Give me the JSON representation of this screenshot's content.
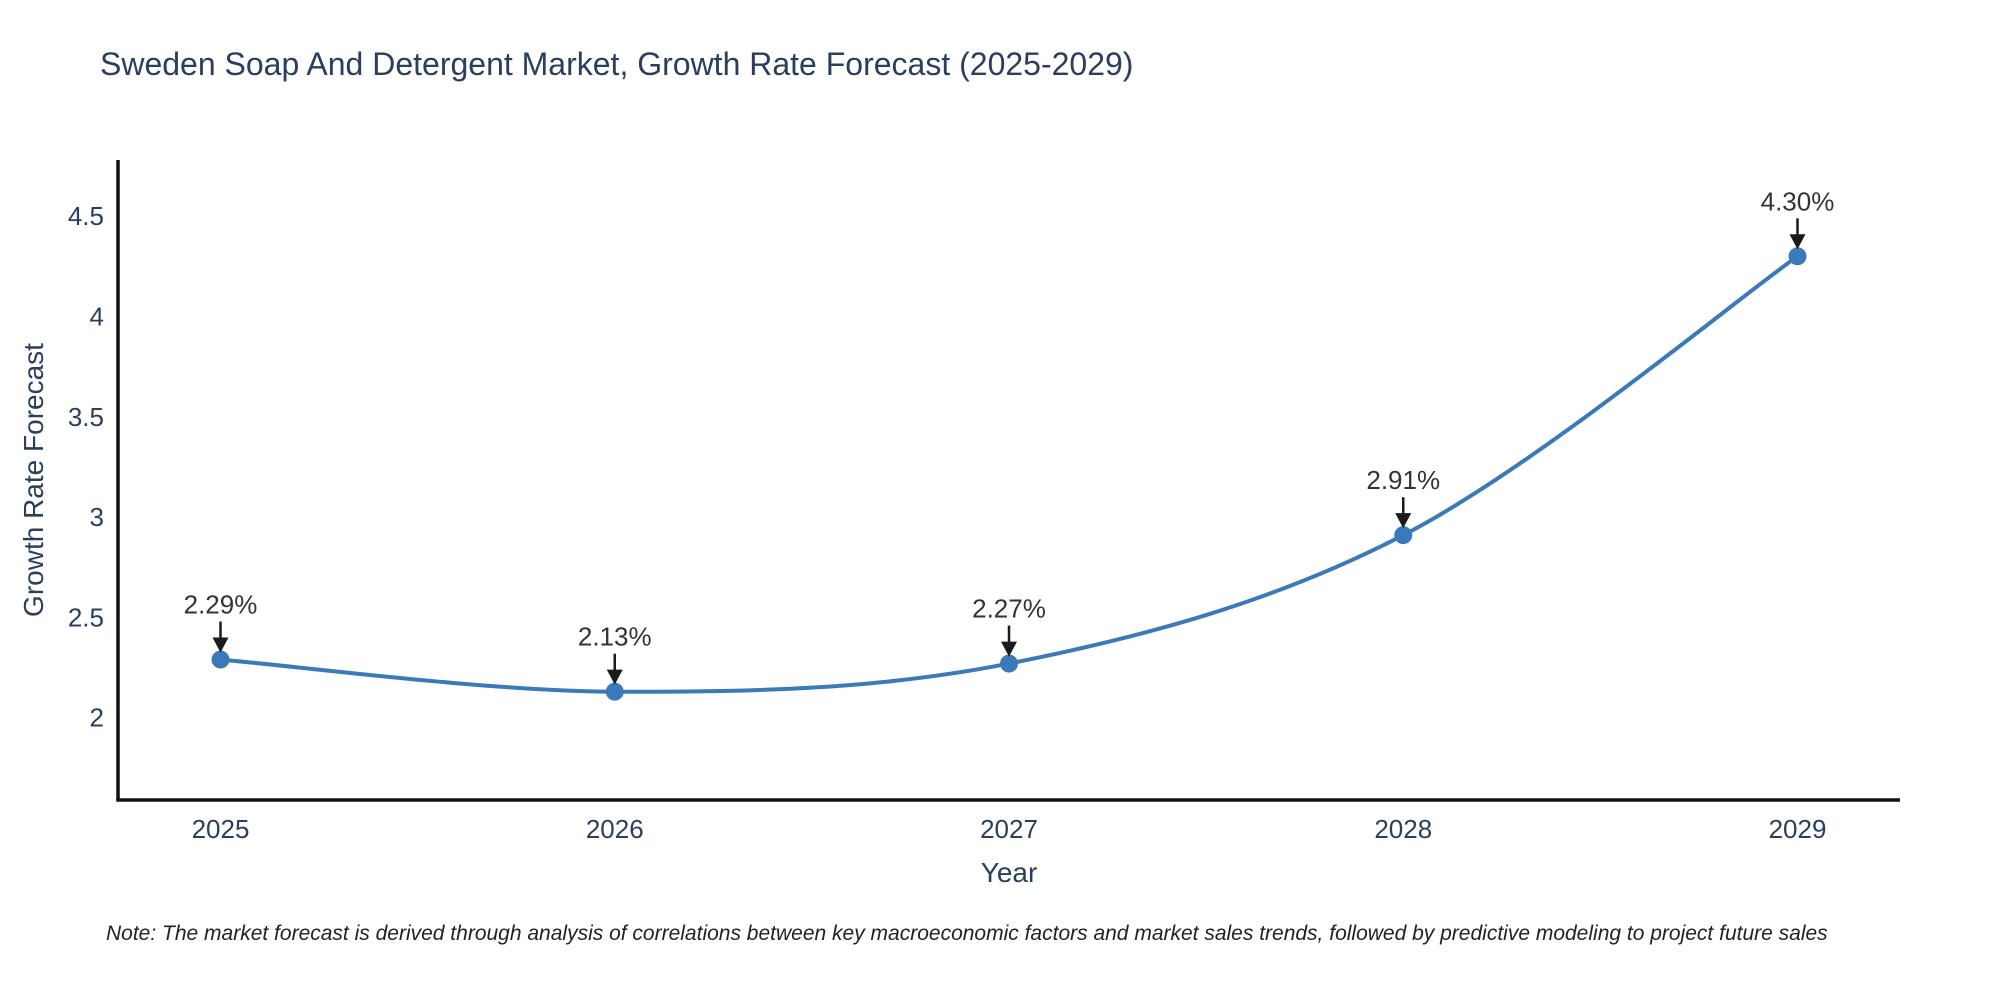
{
  "note": "Note: The market forecast is derived through analysis of correlations between key macroeconomic factors and market sales trends, followed by predictive modeling to project future sales",
  "chart_data": {
    "type": "line",
    "title": "Sweden Soap And Detergent Market, Growth Rate Forecast (2025-2029)",
    "xlabel": "Year",
    "ylabel": "Growth Rate Forecast",
    "x": [
      2025,
      2026,
      2027,
      2028,
      2029
    ],
    "values": [
      2.29,
      2.13,
      2.27,
      2.91,
      4.3
    ],
    "point_labels": [
      "2.29%",
      "2.13%",
      "2.27%",
      "2.91%",
      "4.30%"
    ],
    "xticks": [
      "2025",
      "2026",
      "2027",
      "2028",
      "2029"
    ],
    "yticks": [
      2,
      2.5,
      3,
      3.5,
      4,
      4.5
    ],
    "xlim": [
      2024.74,
      2029.26
    ],
    "ylim": [
      1.59,
      4.78
    ],
    "line_shape": "spline",
    "grid": false,
    "legend": "none",
    "line_color": "#3a7ab9",
    "marker_color": "#3a7ab9",
    "axis_color": "#111111",
    "annotation_arrow_color": "#1a1a1a",
    "annotation_text_color": "#333333",
    "text_color": "#2a3f5f",
    "background_color": "#ffffff"
  }
}
